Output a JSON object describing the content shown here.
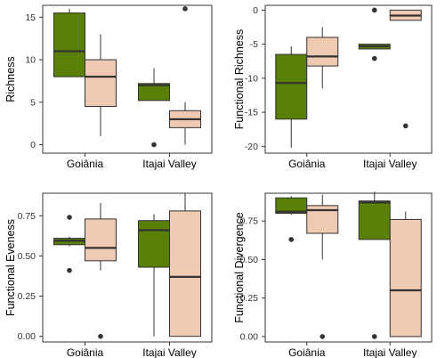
{
  "colors": {
    "series_1": "#5a7f05",
    "series_2": "#f0c9b2",
    "line": "#333333",
    "frame": "#333333"
  },
  "chart_data": [
    {
      "type": "box",
      "ylabel": "Richness",
      "ylim": [
        -1,
        16.4
      ],
      "yticks": [
        0,
        5,
        10,
        15
      ],
      "categories": [
        "Goiânia",
        "Itajai Valley"
      ],
      "series": [
        {
          "color": "#5a7f05",
          "boxes": [
            {
              "min": 8,
              "q1": 8,
              "median": 11,
              "q3": 15.5,
              "max": 16,
              "outliers": []
            },
            {
              "min": 5.2,
              "q1": 5.2,
              "median": 7,
              "q3": 7.2,
              "max": 9,
              "outliers": [
                0
              ]
            }
          ]
        },
        {
          "color": "#f0c9b2",
          "boxes": [
            {
              "min": 1,
              "q1": 4.5,
              "median": 8,
              "q3": 10,
              "max": 13,
              "outliers": []
            },
            {
              "min": 0,
              "q1": 2,
              "median": 3,
              "q3": 4,
              "max": 5,
              "outliers": [
                16
              ]
            }
          ]
        }
      ]
    },
    {
      "type": "box",
      "ylabel": "Functional Richness",
      "ylim": [
        -21,
        0.7
      ],
      "yticks": [
        0,
        -5,
        -10,
        -15,
        -20
      ],
      "categories": [
        "Goiânia",
        "Itajai Valley"
      ],
      "series": [
        {
          "color": "#5a7f05",
          "boxes": [
            {
              "min": -20.2,
              "q1": -16,
              "median": -10.7,
              "q3": -6.5,
              "max": -5.3,
              "outliers": []
            },
            {
              "min": -5.7,
              "q1": -5.7,
              "median": -5.3,
              "q3": -5,
              "max": -5,
              "outliers": [
                0,
                -7.1
              ]
            }
          ]
        },
        {
          "color": "#f0c9b2",
          "boxes": [
            {
              "min": -11.5,
              "q1": -8.2,
              "median": -6.8,
              "q3": -4,
              "max": -2.5,
              "outliers": []
            },
            {
              "min": -1.5,
              "q1": -1.5,
              "median": -0.8,
              "q3": 0,
              "max": 0,
              "outliers": [
                -17
              ]
            }
          ]
        }
      ]
    },
    {
      "type": "box",
      "ylabel": "Functional Eveness",
      "ylim": [
        -0.035,
        0.89
      ],
      "yticks": [
        0.0,
        0.25,
        0.5,
        0.75
      ],
      "tick_labels": [
        "0.00",
        "0.25",
        "0.50",
        "0.75"
      ],
      "categories": [
        "Goiânia",
        "Itajai Valley"
      ],
      "series": [
        {
          "color": "#5a7f05",
          "boxes": [
            {
              "min": 0.56,
              "q1": 0.57,
              "median": 0.595,
              "q3": 0.61,
              "max": 0.62,
              "outliers": [
                0.74,
                0.41
              ]
            },
            {
              "min": 0.0,
              "q1": 0.43,
              "median": 0.66,
              "q3": 0.72,
              "max": 0.76,
              "outliers": []
            }
          ]
        },
        {
          "color": "#f0c9b2",
          "boxes": [
            {
              "min": 0.41,
              "q1": 0.47,
              "median": 0.55,
              "q3": 0.73,
              "max": 0.83,
              "outliers": [
                0.0
              ]
            },
            {
              "min": 0.0,
              "q1": 0.0,
              "median": 0.37,
              "q3": 0.78,
              "max": 0.89,
              "outliers": []
            }
          ]
        }
      ]
    },
    {
      "type": "box",
      "ylabel": "Functional Divergence",
      "ylim": [
        -0.035,
        0.93
      ],
      "yticks": [
        0.0,
        0.25,
        0.5,
        0.75
      ],
      "tick_labels": [
        "0.00",
        "0.25",
        "0.50",
        "0.75"
      ],
      "categories": [
        "Goiânia",
        "Itajai Valley"
      ],
      "series": [
        {
          "color": "#5a7f05",
          "boxes": [
            {
              "min": 0.79,
              "q1": 0.8,
              "median": 0.81,
              "q3": 0.9,
              "max": 0.91,
              "outliers": [
                0.63
              ]
            },
            {
              "min": 0.63,
              "q1": 0.63,
              "median": 0.87,
              "q3": 0.88,
              "max": 0.94,
              "outliers": [
                0.0
              ]
            }
          ]
        },
        {
          "color": "#f0c9b2",
          "boxes": [
            {
              "min": 0.5,
              "q1": 0.67,
              "median": 0.82,
              "q3": 0.85,
              "max": 0.92,
              "outliers": [
                0.0
              ]
            },
            {
              "min": 0.0,
              "q1": 0.0,
              "median": 0.3,
              "q3": 0.76,
              "max": 0.81,
              "outliers": []
            }
          ]
        }
      ]
    }
  ]
}
